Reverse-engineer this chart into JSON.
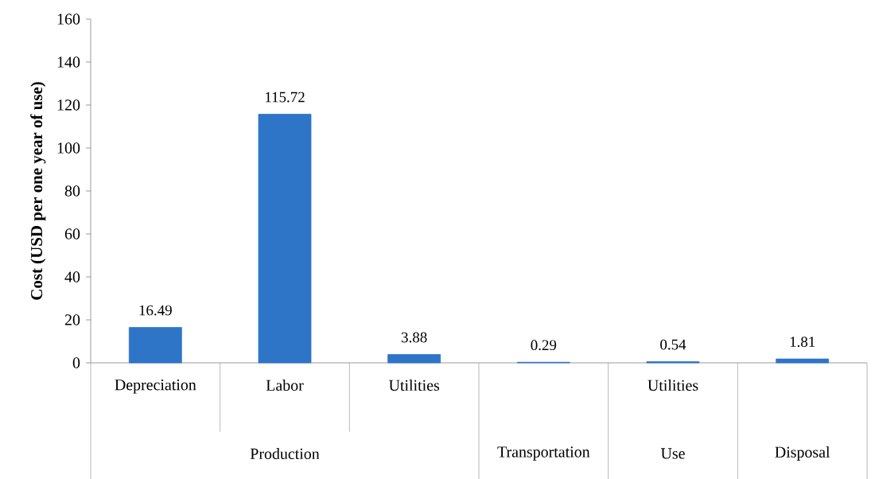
{
  "chart_data": {
    "type": "bar",
    "ylabel": "Cost (USD per one year of use)",
    "categories": [
      "Depreciation",
      "Labor",
      "Utilities",
      null,
      "Utilities",
      null
    ],
    "values": [
      16.49,
      115.72,
      3.88,
      0.29,
      0.54,
      1.81
    ],
    "color": "#2e75c8",
    "ylim": [
      0,
      160
    ],
    "yticks": [
      0,
      20,
      40,
      60,
      80,
      100,
      120,
      140,
      160
    ],
    "data_labels": true,
    "grid": false,
    "annotations": [
      "Production",
      "Transportation",
      "Use",
      "Disposal"
    ]
  }
}
